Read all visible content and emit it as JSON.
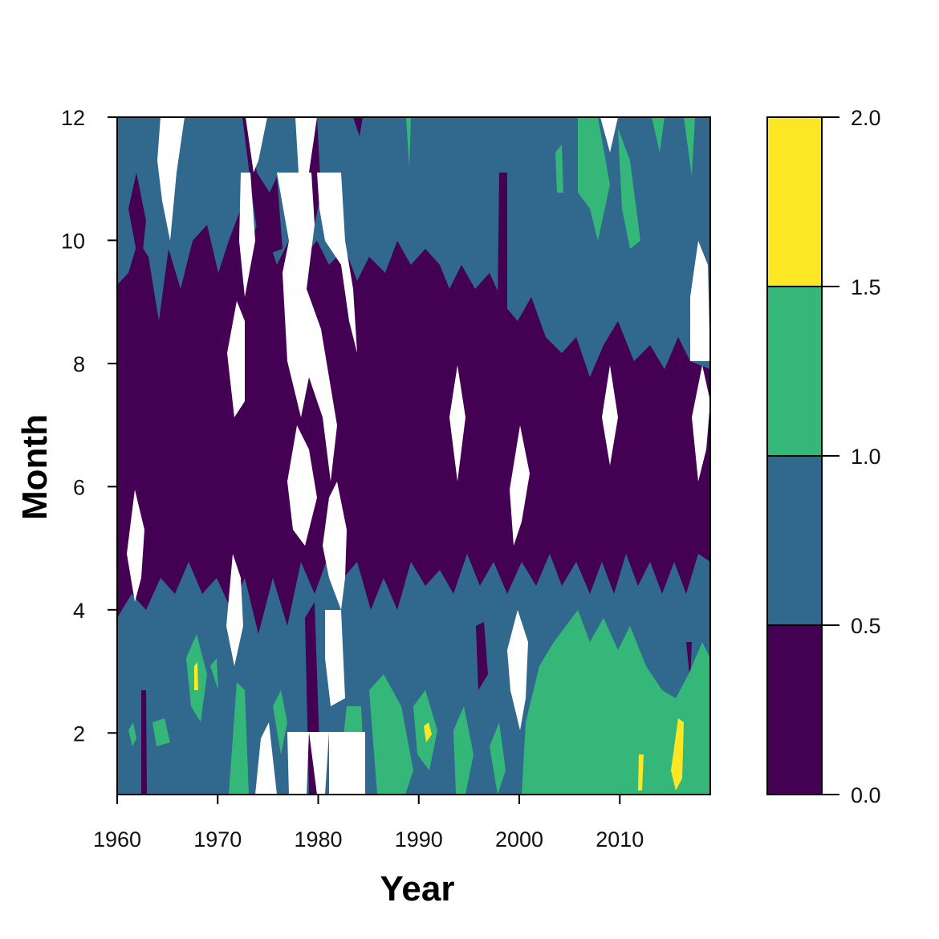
{
  "chart_data": {
    "type": "heatmap",
    "title": "",
    "xlabel": "Year",
    "ylabel": "Month",
    "xlim": [
      1960,
      2019
    ],
    "ylim": [
      1,
      12
    ],
    "x_ticks": [
      "1960",
      "1970",
      "1980",
      "1990",
      "2000",
      "2010"
    ],
    "y_ticks": [
      "2",
      "4",
      "6",
      "8",
      "10",
      "12"
    ],
    "legend": {
      "position": "right",
      "tick_labels": [
        "0.0",
        "0.5",
        "1.0",
        "1.5",
        "2.0"
      ],
      "levels": [
        {
          "from": 0.0,
          "to": 0.5,
          "color": "#440154"
        },
        {
          "from": 0.5,
          "to": 1.0,
          "color": "#31688E"
        },
        {
          "from": 1.0,
          "to": 1.5,
          "color": "#35B779"
        },
        {
          "from": 1.5,
          "to": 2.0,
          "color": "#FDE725"
        }
      ]
    },
    "missing_color": "#FFFFFF",
    "description_bands": [
      {
        "months": [
          1,
          3.5
        ],
        "dominant_level": 1,
        "notes": "mostly 0.5-1.0 with 1.0-1.5 patches after 1985; 1.5-2.0 spots near 1968, 1991, 2012, 2016"
      },
      {
        "months": [
          4,
          9
        ],
        "dominant_level": 0,
        "notes": "mostly 0.0-0.5"
      },
      {
        "months": [
          9.5,
          12
        ],
        "dominant_level": 1,
        "notes": "mostly 0.5-1.0; 1.0-1.5 patches after 2004"
      }
    ]
  }
}
